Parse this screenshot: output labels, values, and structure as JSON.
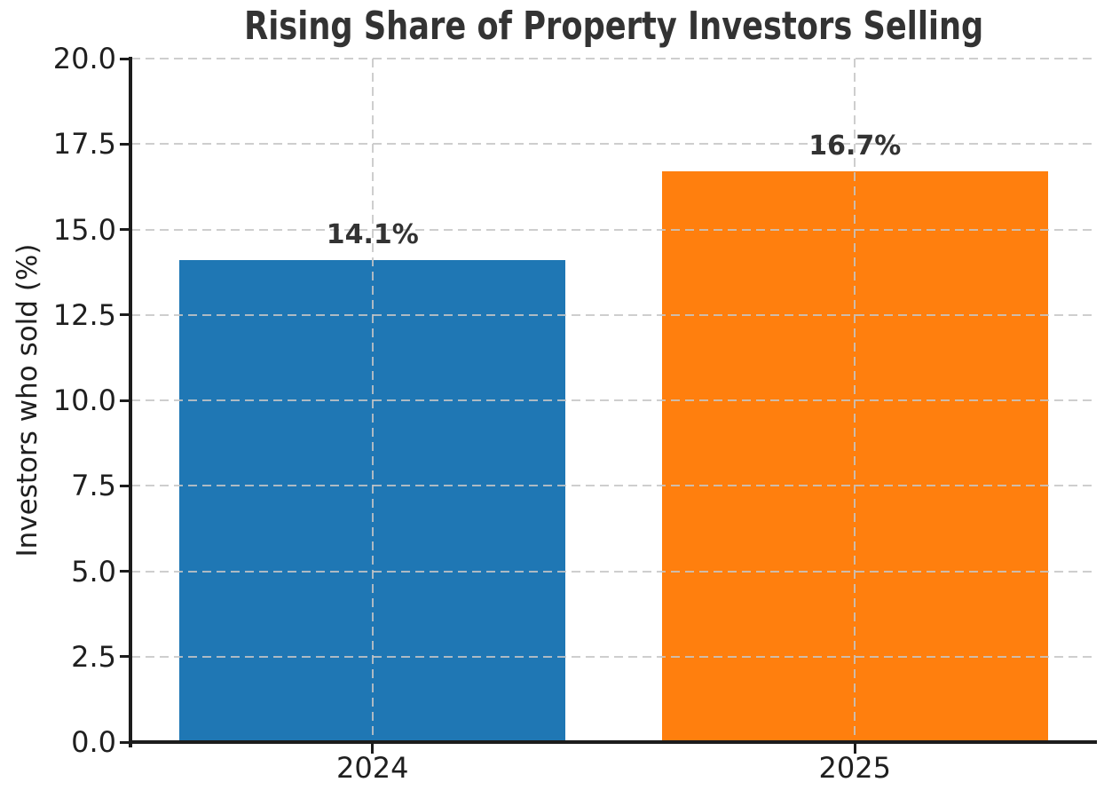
{
  "chart_data": {
    "type": "bar",
    "title": "Rising Share of Property Investors Selling",
    "xlabel": "",
    "ylabel": "Investors who sold (%)",
    "categories": [
      "2024",
      "2025"
    ],
    "values": [
      14.1,
      16.7
    ],
    "value_labels": [
      "14.1%",
      "16.7%"
    ],
    "bar_colors": [
      "#1f77b4",
      "#ff7f0e"
    ],
    "ylim": [
      0,
      20
    ],
    "yticks": [
      0.0,
      2.5,
      5.0,
      7.5,
      10.0,
      12.5,
      15.0,
      17.5,
      20.0
    ],
    "ytick_labels": [
      "0.0",
      "2.5",
      "5.0",
      "7.5",
      "10.0",
      "12.5",
      "15.0",
      "17.5",
      "20.0"
    ],
    "grid": "both",
    "grid_style": "dashed",
    "legend": "none",
    "bar_width_fraction": 0.8
  },
  "colors": {
    "title_text": "#333333",
    "tick_text": "#1f1f1f",
    "value_label_text": "#333333",
    "grid": "#c6c6c6",
    "spine": "#1c1c1c",
    "background": "#ffffff"
  }
}
